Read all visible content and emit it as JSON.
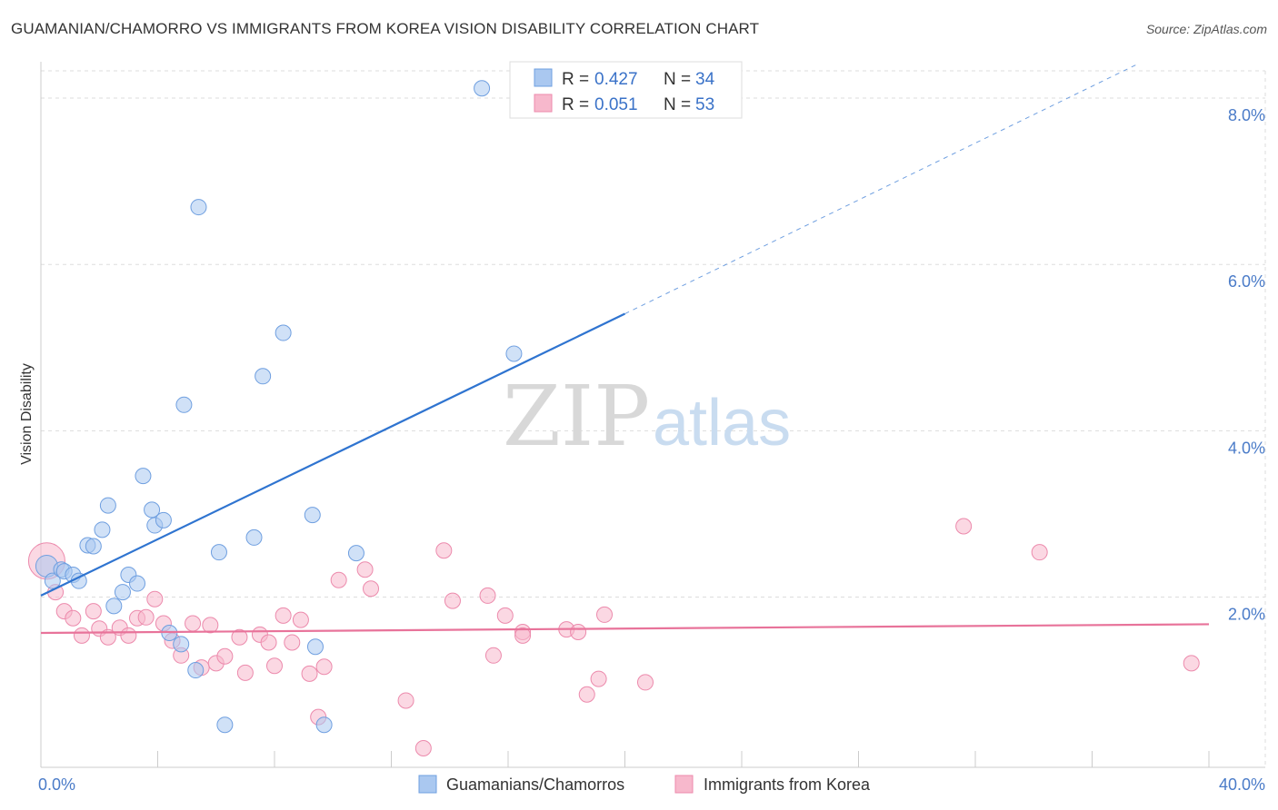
{
  "title": "GUAMANIAN/CHAMORRO VS IMMIGRANTS FROM KOREA VISION DISABILITY CORRELATION CHART",
  "source": "Source: ZipAtlas.com",
  "watermark": {
    "zip": "ZIP",
    "atlas": "atlas"
  },
  "colors": {
    "blue_fill": "#aac8f0",
    "blue_stroke": "#6f9fe0",
    "blue_line": "#2f74d0",
    "pink_fill": "#f7b8cc",
    "pink_stroke": "#ec8aac",
    "pink_line": "#e8739a",
    "grid": "#dddddd",
    "tick_text": "#4a7bc8"
  },
  "legend": {
    "rows": [
      {
        "r_label": "R = ",
        "r_value": "0.427",
        "n_label": "N = ",
        "n_value": "34"
      },
      {
        "r_label": "R = ",
        "r_value": "0.051",
        "n_label": "N = ",
        "n_value": "53"
      }
    ]
  },
  "bottom_legend": [
    "Guamanians/Chamorros",
    "Immigrants from Korea"
  ],
  "chart_data": {
    "type": "scatter",
    "title": "GUAMANIAN/CHAMORRO VS IMMIGRANTS FROM KOREA VISION DISABILITY CORRELATION CHART",
    "xlabel": "",
    "ylabel": "Vision Disability",
    "xlim": [
      0,
      40
    ],
    "ylim": [
      0,
      8
    ],
    "x_tick_labels": [
      "0.0%",
      "40.0%"
    ],
    "y_ticks": [
      2,
      4,
      6,
      8
    ],
    "y_tick_labels": [
      "2.0%",
      "4.0%",
      "6.0%",
      "8.0%"
    ],
    "grid": true,
    "legend_position": "top-center",
    "series": [
      {
        "name": "Guamanians/Chamorros",
        "R": 0.427,
        "N": 34,
        "trend": {
          "x0": 0.0,
          "y0": 1.98,
          "x1": 20.0,
          "y1": 5.23,
          "dashed_to_x": 37.5,
          "dashed_to_y": 8.1
        },
        "points": [
          [
            0.2,
            2.32
          ],
          [
            0.4,
            2.15
          ],
          [
            0.7,
            2.28
          ],
          [
            0.8,
            2.26
          ],
          [
            1.1,
            2.22
          ],
          [
            1.3,
            2.15
          ],
          [
            1.6,
            2.56
          ],
          [
            1.8,
            2.55
          ],
          [
            2.1,
            2.74
          ],
          [
            2.3,
            3.02
          ],
          [
            2.5,
            1.86
          ],
          [
            2.8,
            2.02
          ],
          [
            3.0,
            2.22
          ],
          [
            3.3,
            2.12
          ],
          [
            3.5,
            3.36
          ],
          [
            3.8,
            2.97
          ],
          [
            3.9,
            2.79
          ],
          [
            4.2,
            2.85
          ],
          [
            4.4,
            1.55
          ],
          [
            4.8,
            1.42
          ],
          [
            4.9,
            4.18
          ],
          [
            5.3,
            1.12
          ],
          [
            5.4,
            6.46
          ],
          [
            6.1,
            2.48
          ],
          [
            6.3,
            0.49
          ],
          [
            7.3,
            2.65
          ],
          [
            7.6,
            4.51
          ],
          [
            8.3,
            5.01
          ],
          [
            9.3,
            2.91
          ],
          [
            9.4,
            1.39
          ],
          [
            9.7,
            0.49
          ],
          [
            10.8,
            2.47
          ],
          [
            15.1,
            7.83
          ],
          [
            16.2,
            4.77
          ]
        ]
      },
      {
        "name": "Immigrants from Korea",
        "R": 0.051,
        "N": 53,
        "trend": {
          "x0": 0.0,
          "y0": 1.55,
          "x1": 40.0,
          "y1": 1.65
        },
        "points": [
          [
            0.2,
            2.38
          ],
          [
            0.5,
            2.02
          ],
          [
            0.8,
            1.8
          ],
          [
            1.1,
            1.72
          ],
          [
            1.4,
            1.52
          ],
          [
            1.8,
            1.8
          ],
          [
            2.0,
            1.6
          ],
          [
            2.3,
            1.5
          ],
          [
            2.7,
            1.61
          ],
          [
            3.0,
            1.52
          ],
          [
            3.3,
            1.72
          ],
          [
            3.6,
            1.73
          ],
          [
            3.9,
            1.94
          ],
          [
            4.2,
            1.66
          ],
          [
            4.5,
            1.46
          ],
          [
            4.8,
            1.29
          ],
          [
            5.2,
            1.66
          ],
          [
            5.5,
            1.15
          ],
          [
            5.8,
            1.64
          ],
          [
            6.0,
            1.2
          ],
          [
            6.3,
            1.28
          ],
          [
            6.8,
            1.5
          ],
          [
            7.0,
            1.09
          ],
          [
            7.5,
            1.53
          ],
          [
            7.8,
            1.44
          ],
          [
            8.0,
            1.17
          ],
          [
            8.3,
            1.75
          ],
          [
            8.6,
            1.44
          ],
          [
            8.9,
            1.7
          ],
          [
            9.2,
            1.08
          ],
          [
            9.5,
            0.58
          ],
          [
            9.7,
            1.16
          ],
          [
            10.2,
            2.16
          ],
          [
            11.1,
            2.28
          ],
          [
            11.3,
            2.06
          ],
          [
            12.5,
            0.77
          ],
          [
            13.1,
            0.22
          ],
          [
            13.8,
            2.5
          ],
          [
            14.1,
            1.92
          ],
          [
            15.3,
            1.98
          ],
          [
            15.5,
            1.29
          ],
          [
            15.9,
            1.75
          ],
          [
            16.5,
            1.56
          ],
          [
            16.5,
            1.52
          ],
          [
            18.0,
            1.59
          ],
          [
            18.4,
            1.56
          ],
          [
            18.7,
            0.84
          ],
          [
            19.1,
            1.02
          ],
          [
            19.3,
            1.76
          ],
          [
            20.7,
            0.98
          ],
          [
            31.6,
            2.78
          ],
          [
            34.2,
            2.48
          ],
          [
            39.4,
            1.2
          ]
        ]
      }
    ]
  }
}
